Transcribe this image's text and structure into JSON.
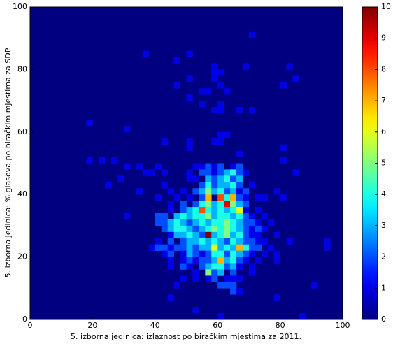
{
  "chart_data": {
    "type": "hist2d",
    "xlabel": "5. izborna jedinica: izlaznost po biračkim mjestima za 2011.",
    "ylabel": "5. izborna jedinica: % glasova po biračkim mjestima za SDP",
    "xlim": [
      0,
      100
    ],
    "ylim": [
      0,
      100
    ],
    "xticks": [
      0,
      20,
      40,
      60,
      80,
      100
    ],
    "yticks": [
      0,
      20,
      40,
      60,
      80,
      100
    ],
    "clim": [
      0,
      10
    ],
    "cticks": [
      0,
      1,
      2,
      3,
      4,
      5,
      6,
      7,
      8,
      9,
      10
    ],
    "colormap": "jet",
    "bin_width": 2,
    "cells": [
      [
        70,
        90,
        1
      ],
      [
        36,
        84,
        1
      ],
      [
        50,
        84,
        1
      ],
      [
        46,
        82,
        1
      ],
      [
        58,
        80,
        1
      ],
      [
        68,
        80,
        1
      ],
      [
        82,
        80,
        1
      ],
      [
        58,
        78,
        1
      ],
      [
        60,
        78,
        1
      ],
      [
        84,
        76,
        1
      ],
      [
        58,
        76,
        1
      ],
      [
        50,
        76,
        1
      ],
      [
        80,
        74,
        1
      ],
      [
        46,
        74,
        1
      ],
      [
        60,
        74,
        1
      ],
      [
        54,
        72,
        1
      ],
      [
        56,
        72,
        1
      ],
      [
        62,
        72,
        1
      ],
      [
        50,
        70,
        1
      ],
      [
        54,
        68,
        1
      ],
      [
        60,
        68,
        1
      ],
      [
        58,
        66,
        1
      ],
      [
        60,
        66,
        1
      ],
      [
        66,
        66,
        1
      ],
      [
        70,
        66,
        1
      ],
      [
        18,
        62,
        1
      ],
      [
        30,
        60,
        1
      ],
      [
        60,
        58,
        1
      ],
      [
        62,
        58,
        1
      ],
      [
        42,
        56,
        1
      ],
      [
        50,
        56,
        1
      ],
      [
        58,
        56,
        1
      ],
      [
        60,
        56,
        1
      ],
      [
        50,
        54,
        1
      ],
      [
        80,
        54,
        1
      ],
      [
        66,
        52,
        1
      ],
      [
        80,
        50,
        1
      ],
      [
        18,
        50,
        1
      ],
      [
        22,
        50,
        1
      ],
      [
        26,
        50,
        1
      ],
      [
        30,
        48,
        1
      ],
      [
        34,
        48,
        1
      ],
      [
        40,
        48,
        1
      ],
      [
        36,
        46,
        1
      ],
      [
        38,
        46,
        1
      ],
      [
        42,
        46,
        1
      ],
      [
        28,
        44,
        1
      ],
      [
        24,
        42,
        1
      ],
      [
        84,
        46,
        1
      ],
      [
        34,
        40,
        1
      ],
      [
        42,
        42,
        1
      ],
      [
        44,
        40,
        1
      ],
      [
        40,
        38,
        1
      ],
      [
        46,
        38,
        1
      ],
      [
        78,
        40,
        1
      ],
      [
        80,
        38,
        1
      ],
      [
        72,
        38,
        1
      ],
      [
        30,
        32,
        1
      ],
      [
        94,
        24,
        1
      ],
      [
        94,
        22,
        1
      ],
      [
        90,
        10,
        1
      ],
      [
        78,
        6,
        1
      ],
      [
        44,
        6,
        1
      ],
      [
        52,
        2,
        1
      ],
      [
        60,
        0,
        1
      ],
      [
        86,
        0,
        1
      ],
      [
        52,
        48,
        1
      ],
      [
        54,
        48,
        1
      ],
      [
        56,
        48,
        2
      ],
      [
        58,
        48,
        1
      ],
      [
        60,
        48,
        2
      ],
      [
        64,
        48,
        1
      ],
      [
        66,
        48,
        2
      ],
      [
        50,
        46,
        1
      ],
      [
        54,
        46,
        2
      ],
      [
        56,
        46,
        2
      ],
      [
        58,
        46,
        1
      ],
      [
        60,
        46,
        2
      ],
      [
        62,
        46,
        3
      ],
      [
        64,
        46,
        4
      ],
      [
        66,
        46,
        2
      ],
      [
        68,
        46,
        1
      ],
      [
        50,
        44,
        1
      ],
      [
        52,
        44,
        1
      ],
      [
        56,
        44,
        3
      ],
      [
        58,
        44,
        2
      ],
      [
        60,
        44,
        3
      ],
      [
        62,
        44,
        4
      ],
      [
        64,
        44,
        2
      ],
      [
        66,
        44,
        3
      ],
      [
        54,
        42,
        2
      ],
      [
        56,
        42,
        4
      ],
      [
        58,
        42,
        2
      ],
      [
        60,
        42,
        3
      ],
      [
        62,
        42,
        3
      ],
      [
        64,
        42,
        4
      ],
      [
        66,
        42,
        2
      ],
      [
        70,
        42,
        1
      ],
      [
        48,
        40,
        1
      ],
      [
        52,
        40,
        2
      ],
      [
        54,
        40,
        3
      ],
      [
        56,
        40,
        5
      ],
      [
        58,
        40,
        3
      ],
      [
        60,
        40,
        4
      ],
      [
        62,
        40,
        2
      ],
      [
        64,
        40,
        3
      ],
      [
        66,
        40,
        1
      ],
      [
        68,
        40,
        2
      ],
      [
        50,
        38,
        1
      ],
      [
        54,
        38,
        2
      ],
      [
        56,
        38,
        7
      ],
      [
        60,
        38,
        8
      ],
      [
        62,
        38,
        4
      ],
      [
        64,
        38,
        7
      ],
      [
        66,
        38,
        2
      ],
      [
        68,
        38,
        1
      ],
      [
        74,
        38,
        1
      ],
      [
        44,
        36,
        1
      ],
      [
        48,
        36,
        2
      ],
      [
        52,
        36,
        2
      ],
      [
        54,
        36,
        4
      ],
      [
        56,
        36,
        5
      ],
      [
        58,
        36,
        3
      ],
      [
        60,
        36,
        4
      ],
      [
        62,
        36,
        9
      ],
      [
        64,
        36,
        5
      ],
      [
        66,
        36,
        3
      ],
      [
        68,
        36,
        2
      ],
      [
        44,
        34,
        1
      ],
      [
        48,
        34,
        2
      ],
      [
        50,
        34,
        3
      ],
      [
        52,
        34,
        4
      ],
      [
        54,
        34,
        8
      ],
      [
        56,
        34,
        4
      ],
      [
        58,
        34,
        3
      ],
      [
        60,
        34,
        4
      ],
      [
        62,
        34,
        3
      ],
      [
        64,
        34,
        4
      ],
      [
        66,
        34,
        6
      ],
      [
        68,
        34,
        1
      ],
      [
        72,
        34,
        1
      ],
      [
        40,
        32,
        2
      ],
      [
        42,
        32,
        2
      ],
      [
        46,
        32,
        3
      ],
      [
        48,
        32,
        4
      ],
      [
        50,
        32,
        3
      ],
      [
        52,
        32,
        4
      ],
      [
        54,
        32,
        4
      ],
      [
        56,
        32,
        5
      ],
      [
        58,
        32,
        3
      ],
      [
        60,
        32,
        4
      ],
      [
        62,
        32,
        4
      ],
      [
        64,
        32,
        3
      ],
      [
        66,
        32,
        4
      ],
      [
        68,
        32,
        2
      ],
      [
        70,
        32,
        1
      ],
      [
        74,
        32,
        1
      ],
      [
        40,
        30,
        2
      ],
      [
        42,
        30,
        2
      ],
      [
        44,
        30,
        3
      ],
      [
        46,
        30,
        4
      ],
      [
        48,
        30,
        3
      ],
      [
        50,
        30,
        2
      ],
      [
        52,
        30,
        3
      ],
      [
        54,
        30,
        4
      ],
      [
        56,
        30,
        3
      ],
      [
        58,
        30,
        4
      ],
      [
        60,
        30,
        4
      ],
      [
        62,
        30,
        5
      ],
      [
        64,
        30,
        4
      ],
      [
        66,
        30,
        3
      ],
      [
        68,
        30,
        2
      ],
      [
        70,
        30,
        2
      ],
      [
        72,
        30,
        1
      ],
      [
        76,
        30,
        1
      ],
      [
        42,
        28,
        2
      ],
      [
        44,
        28,
        3
      ],
      [
        46,
        28,
        4
      ],
      [
        48,
        28,
        4
      ],
      [
        50,
        28,
        3
      ],
      [
        52,
        28,
        2
      ],
      [
        54,
        28,
        3
      ],
      [
        56,
        28,
        4
      ],
      [
        58,
        28,
        5
      ],
      [
        60,
        28,
        4
      ],
      [
        62,
        28,
        5
      ],
      [
        64,
        28,
        4
      ],
      [
        66,
        28,
        3
      ],
      [
        68,
        28,
        2
      ],
      [
        70,
        28,
        1
      ],
      [
        72,
        28,
        2
      ],
      [
        74,
        28,
        1
      ],
      [
        44,
        26,
        1
      ],
      [
        46,
        26,
        3
      ],
      [
        48,
        26,
        3
      ],
      [
        50,
        26,
        4
      ],
      [
        52,
        26,
        3
      ],
      [
        54,
        26,
        2
      ],
      [
        56,
        26,
        10
      ],
      [
        58,
        26,
        3
      ],
      [
        60,
        26,
        4
      ],
      [
        62,
        26,
        5
      ],
      [
        64,
        26,
        3
      ],
      [
        66,
        26,
        4
      ],
      [
        68,
        26,
        2
      ],
      [
        70,
        26,
        1
      ],
      [
        72,
        26,
        1
      ],
      [
        78,
        26,
        1
      ],
      [
        40,
        24,
        1
      ],
      [
        44,
        24,
        2
      ],
      [
        48,
        24,
        2
      ],
      [
        50,
        24,
        3
      ],
      [
        52,
        24,
        3
      ],
      [
        54,
        24,
        4
      ],
      [
        56,
        24,
        3
      ],
      [
        58,
        24,
        4
      ],
      [
        60,
        24,
        3
      ],
      [
        62,
        24,
        2
      ],
      [
        64,
        24,
        4
      ],
      [
        66,
        24,
        3
      ],
      [
        68,
        24,
        2
      ],
      [
        70,
        24,
        2
      ],
      [
        72,
        24,
        1
      ],
      [
        74,
        24,
        1
      ],
      [
        82,
        24,
        1
      ],
      [
        38,
        22,
        1
      ],
      [
        40,
        22,
        2
      ],
      [
        42,
        22,
        2
      ],
      [
        44,
        22,
        1
      ],
      [
        46,
        22,
        2
      ],
      [
        48,
        22,
        2
      ],
      [
        50,
        22,
        3
      ],
      [
        52,
        22,
        2
      ],
      [
        54,
        22,
        3
      ],
      [
        56,
        22,
        3
      ],
      [
        58,
        22,
        6
      ],
      [
        60,
        22,
        3
      ],
      [
        62,
        22,
        4
      ],
      [
        64,
        22,
        3
      ],
      [
        66,
        22,
        7
      ],
      [
        68,
        22,
        4
      ],
      [
        70,
        22,
        2
      ],
      [
        72,
        22,
        2
      ],
      [
        76,
        22,
        1
      ],
      [
        42,
        20,
        1
      ],
      [
        44,
        20,
        2
      ],
      [
        48,
        20,
        1
      ],
      [
        50,
        20,
        3
      ],
      [
        52,
        20,
        2
      ],
      [
        54,
        20,
        1
      ],
      [
        56,
        20,
        2
      ],
      [
        58,
        20,
        4
      ],
      [
        60,
        20,
        4
      ],
      [
        62,
        20,
        2
      ],
      [
        64,
        20,
        4
      ],
      [
        66,
        20,
        3
      ],
      [
        68,
        20,
        2
      ],
      [
        70,
        20,
        1
      ],
      [
        74,
        20,
        1
      ],
      [
        78,
        20,
        1
      ],
      [
        44,
        18,
        1
      ],
      [
        48,
        18,
        1
      ],
      [
        50,
        18,
        2
      ],
      [
        52,
        18,
        1
      ],
      [
        54,
        18,
        2
      ],
      [
        56,
        18,
        2
      ],
      [
        58,
        18,
        3
      ],
      [
        60,
        18,
        7
      ],
      [
        62,
        18,
        3
      ],
      [
        64,
        18,
        4
      ],
      [
        66,
        18,
        2
      ],
      [
        68,
        18,
        1
      ],
      [
        72,
        18,
        1
      ],
      [
        78,
        18,
        1
      ],
      [
        44,
        16,
        1
      ],
      [
        48,
        16,
        2
      ],
      [
        50,
        16,
        1
      ],
      [
        54,
        16,
        2
      ],
      [
        56,
        16,
        3
      ],
      [
        58,
        16,
        4
      ],
      [
        60,
        16,
        4
      ],
      [
        62,
        16,
        2
      ],
      [
        64,
        16,
        3
      ],
      [
        66,
        16,
        1
      ],
      [
        70,
        16,
        1
      ],
      [
        52,
        14,
        1
      ],
      [
        56,
        14,
        5
      ],
      [
        58,
        14,
        2
      ],
      [
        60,
        14,
        3
      ],
      [
        64,
        14,
        2
      ],
      [
        70,
        14,
        1
      ],
      [
        48,
        12,
        1
      ],
      [
        52,
        12,
        1
      ],
      [
        56,
        12,
        1
      ],
      [
        58,
        12,
        2
      ],
      [
        62,
        12,
        1
      ],
      [
        64,
        12,
        1
      ],
      [
        66,
        12,
        1
      ],
      [
        46,
        10,
        1
      ],
      [
        60,
        10,
        2
      ],
      [
        62,
        10,
        2
      ],
      [
        64,
        10,
        2
      ],
      [
        64,
        8,
        2
      ],
      [
        66,
        8,
        1
      ]
    ]
  }
}
